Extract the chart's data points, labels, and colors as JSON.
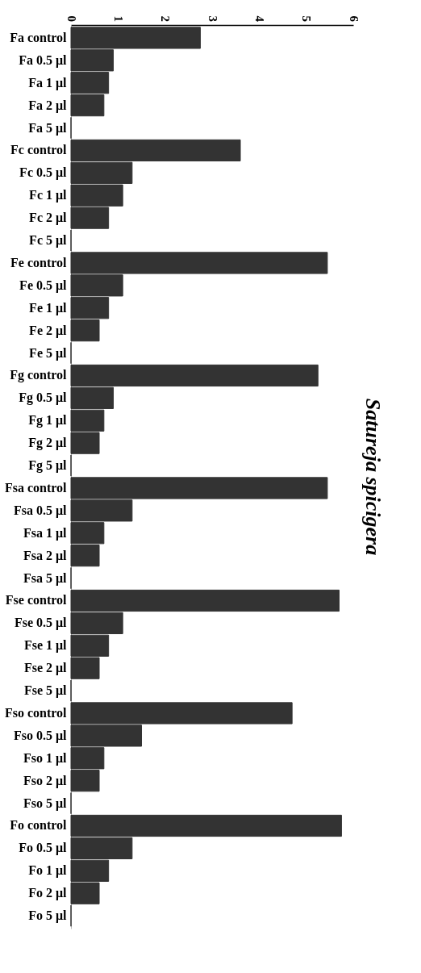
{
  "chart_data": {
    "type": "bar",
    "orientation": "horizontal",
    "title": "Satureja spicigera",
    "categories": [
      "Fa control",
      "Fa 0.5 μl",
      "Fa 1 μl",
      "Fa 2 μl",
      "Fa 5 μl",
      "Fc control",
      "Fc 0.5 μl",
      "Fc 1 μl",
      "Fc 2 μl",
      "Fc 5 μl",
      "Fe control",
      "Fe 0.5 μl",
      "Fe 1 μl",
      "Fe 2 μl",
      "Fe 5 μl",
      "Fg control",
      "Fg 0.5 μl",
      "Fg 1 μl",
      "Fg 2 μl",
      "Fg 5 μl",
      "Fsa control",
      "Fsa 0.5 μl",
      "Fsa 1 μl",
      "Fsa 2 μl",
      "Fsa 5 μl",
      "Fse control",
      "Fse 0.5 μl",
      "Fse 1 μl",
      "Fse 2 μl",
      "Fse 5 μl",
      "Fso control",
      "Fso 0.5 μl",
      "Fso 1 μl",
      "Fso 2 μl",
      "Fso 5 μl",
      "Fo control",
      "Fo 0.5 μl",
      "Fo 1 μl",
      "Fo 2 μl",
      "Fo 5 μl"
    ],
    "values": [
      2.75,
      0.9,
      0.8,
      0.7,
      0,
      3.6,
      1.3,
      1.1,
      0.8,
      0,
      5.45,
      1.1,
      0.8,
      0.6,
      0,
      5.25,
      0.9,
      0.7,
      0.6,
      0,
      5.45,
      1.3,
      0.7,
      0.6,
      0,
      5.7,
      1.1,
      0.8,
      0.6,
      0,
      4.7,
      1.5,
      0.7,
      0.6,
      0,
      5.75,
      1.3,
      0.8,
      0.6,
      0
    ],
    "color": "#333333",
    "xlim": [
      0,
      6
    ],
    "xticks": [
      0,
      1,
      2,
      3,
      4,
      5,
      6
    ],
    "grid": false
  }
}
